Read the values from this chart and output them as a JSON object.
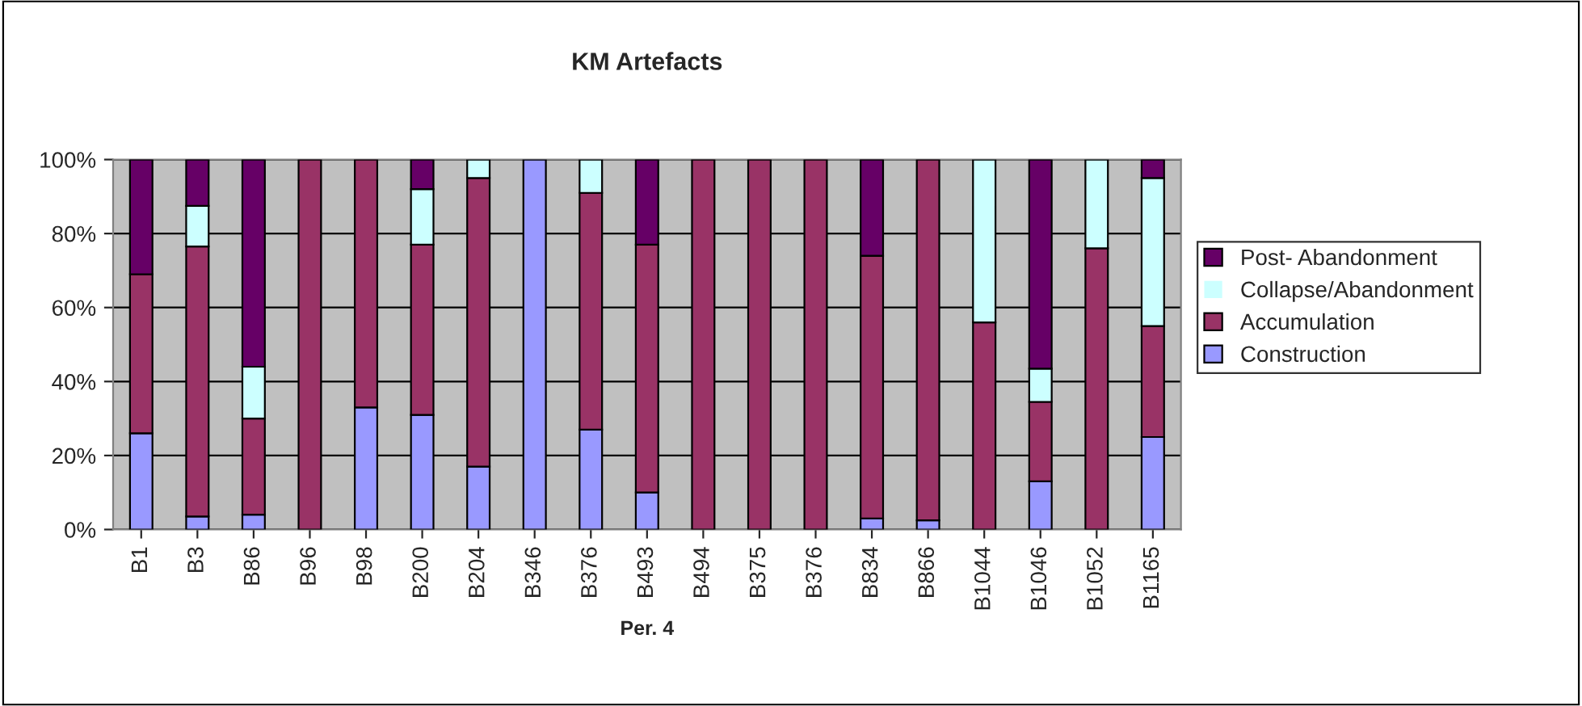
{
  "chart_data": {
    "type": "bar",
    "title": "KM Artefacts",
    "xlabel": "Per. 4",
    "stacked": true,
    "categories": [
      "B1",
      "B3",
      "B86",
      "B96",
      "B98",
      "B200",
      "B204",
      "B346",
      "B376",
      "B493",
      "B494",
      "B375",
      "B376",
      "B834",
      "B866",
      "B1044",
      "B1046",
      "B1052",
      "B1165"
    ],
    "series": [
      {
        "name": "Construction",
        "color": "#9999ff",
        "values": [
          26,
          3.5,
          4,
          0,
          33,
          31,
          17,
          100,
          27,
          10,
          0,
          0,
          0,
          3,
          2.5,
          0,
          13,
          0,
          25
        ]
      },
      {
        "name": "Accumulation",
        "color": "#993366",
        "values": [
          43,
          73,
          26,
          100,
          67,
          46,
          78,
          0,
          64,
          67,
          100,
          100,
          100,
          71,
          97.5,
          56,
          21.5,
          76,
          30
        ]
      },
      {
        "name": "Collapse/Abandonment",
        "color": "#ccffff",
        "values": [
          0,
          11,
          14,
          0,
          0,
          15,
          5,
          0,
          9,
          0,
          0,
          0,
          0,
          0,
          0,
          44,
          9,
          24,
          40
        ]
      },
      {
        "name": "Post- Abandonment",
        "color": "#660066",
        "values": [
          31,
          12.5,
          56,
          0,
          0,
          8,
          0,
          0,
          0,
          23,
          0,
          0,
          0,
          26,
          0,
          0,
          56.5,
          0,
          5
        ]
      }
    ],
    "ylim": [
      0,
      100
    ],
    "yticks": [
      {
        "value": 0,
        "label": "0%"
      },
      {
        "value": 20,
        "label": "20%"
      },
      {
        "value": 40,
        "label": "40%"
      },
      {
        "value": 60,
        "label": "60%"
      },
      {
        "value": 80,
        "label": "80%"
      },
      {
        "value": 100,
        "label": "100%"
      }
    ],
    "grid": "y",
    "legend": "right"
  }
}
